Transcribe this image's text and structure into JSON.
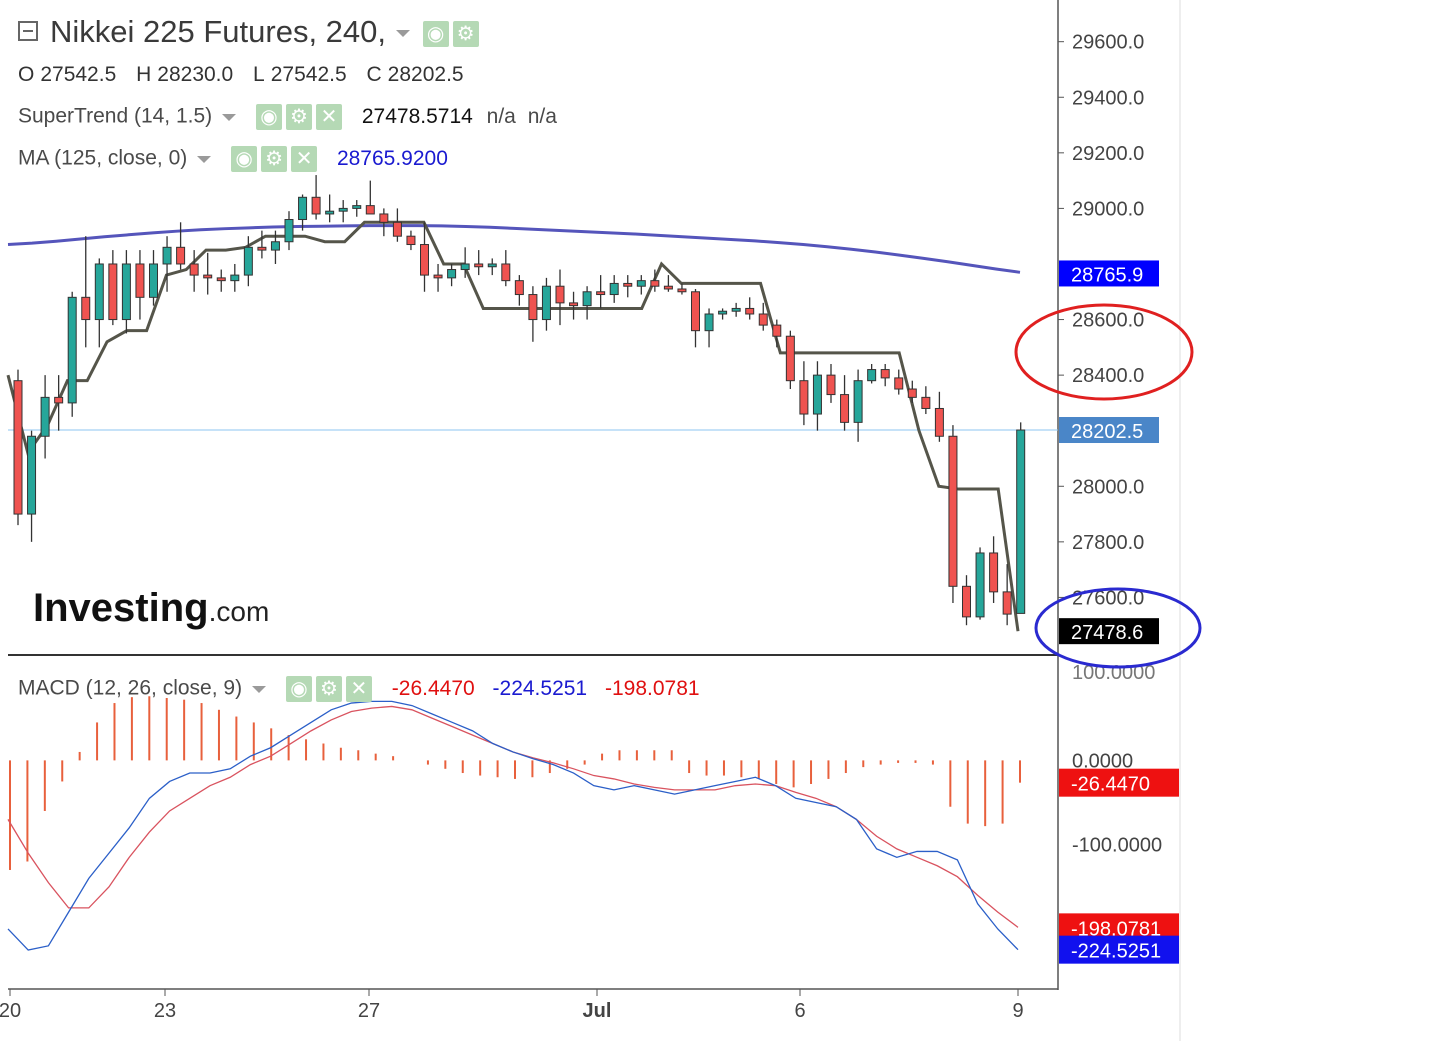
{
  "header": {
    "title": "Nikkei 225 Futures, 240,",
    "ohlc": [
      {
        "k": "O",
        "v": "27542.5"
      },
      {
        "k": "H",
        "v": "28230.0"
      },
      {
        "k": "L",
        "v": "27542.5"
      },
      {
        "k": "C",
        "v": "28202.5"
      }
    ],
    "supertrend": {
      "label": "SuperTrend (14, 1.5)",
      "value": "27478.5714",
      "na1": "n/a",
      "na2": "n/a"
    },
    "ma": {
      "label": "MA (125, close, 0)",
      "value": "28765.9200"
    },
    "macd": {
      "label": "MACD (12, 26, close, 9)",
      "hist": "-26.4470",
      "macd": "-224.5251",
      "signal": "-198.0781"
    }
  },
  "logo": {
    "main": "Investing",
    "suffix": ".com"
  },
  "colors": {
    "up": "#26a69a",
    "down": "#ef5350",
    "ma": "#5555bb",
    "supertrend": "#55554a",
    "macd": "#2b5fc8",
    "signal": "#d9535f",
    "hist": "#e8603c",
    "crosshair": "#8ec6f0"
  },
  "chart_data": {
    "type": "candlestick",
    "price_axis": {
      "ticks": [
        "29600.0",
        "29400.0",
        "29200.0",
        "29000.0",
        "28600.0",
        "28400.0",
        "28000.0",
        "27800.0",
        "27600.0"
      ],
      "range": [
        27400,
        29750
      ]
    },
    "x_labels": [
      "20",
      "23",
      "27",
      "Jul",
      "6",
      "9"
    ],
    "price_tags": [
      {
        "label": "28765.9",
        "value": 28765.9,
        "color": "#0000ff"
      },
      {
        "label": "28202.5",
        "value": 28202.5,
        "color": "#4a86c8"
      },
      {
        "label": "27478.6",
        "value": 27478.6,
        "color": "#000000"
      }
    ],
    "candles": [
      [
        28380,
        28420,
        27860,
        27900
      ],
      [
        27900,
        28200,
        27800,
        28180
      ],
      [
        28180,
        28400,
        28100,
        28320
      ],
      [
        28320,
        28400,
        28200,
        28300
      ],
      [
        28300,
        28700,
        28250,
        28680
      ],
      [
        28680,
        28900,
        28500,
        28600
      ],
      [
        28600,
        28820,
        28500,
        28800
      ],
      [
        28800,
        28850,
        28580,
        28600
      ],
      [
        28600,
        28850,
        28550,
        28800
      ],
      [
        28800,
        28850,
        28600,
        28680
      ],
      [
        28680,
        28850,
        28650,
        28800
      ],
      [
        28800,
        28900,
        28700,
        28860
      ],
      [
        28860,
        28950,
        28780,
        28800
      ],
      [
        28800,
        28850,
        28700,
        28760
      ],
      [
        28760,
        28840,
        28690,
        28750
      ],
      [
        28750,
        28780,
        28700,
        28740
      ],
      [
        28740,
        28800,
        28700,
        28760
      ],
      [
        28760,
        28900,
        28720,
        28860
      ],
      [
        28860,
        28920,
        28820,
        28850
      ],
      [
        28850,
        28920,
        28800,
        28880
      ],
      [
        28880,
        28990,
        28850,
        28960
      ],
      [
        28960,
        29050,
        28920,
        29040
      ],
      [
        29040,
        29120,
        28960,
        28980
      ],
      [
        28980,
        29050,
        28950,
        28990
      ],
      [
        28990,
        29030,
        28950,
        29000
      ],
      [
        29000,
        29030,
        28970,
        29010
      ],
      [
        29010,
        29100,
        28990,
        28980
      ],
      [
        28980,
        29000,
        28900,
        28950
      ],
      [
        28950,
        29000,
        28880,
        28900
      ],
      [
        28900,
        28920,
        28850,
        28870
      ],
      [
        28870,
        28950,
        28700,
        28760
      ],
      [
        28760,
        28800,
        28700,
        28750
      ],
      [
        28750,
        28800,
        28720,
        28780
      ],
      [
        28780,
        28860,
        28750,
        28800
      ],
      [
        28800,
        28850,
        28760,
        28790
      ],
      [
        28790,
        28820,
        28760,
        28800
      ],
      [
        28800,
        28850,
        28720,
        28740
      ],
      [
        28740,
        28760,
        28650,
        28690
      ],
      [
        28690,
        28720,
        28520,
        28600
      ],
      [
        28600,
        28750,
        28560,
        28720
      ],
      [
        28720,
        28780,
        28580,
        28660
      ],
      [
        28660,
        28700,
        28600,
        28650
      ],
      [
        28650,
        28720,
        28600,
        28700
      ],
      [
        28700,
        28760,
        28640,
        28690
      ],
      [
        28690,
        28760,
        28660,
        28730
      ],
      [
        28730,
        28760,
        28680,
        28720
      ],
      [
        28720,
        28760,
        28690,
        28740
      ],
      [
        28740,
        28780,
        28700,
        28720
      ],
      [
        28720,
        28760,
        28700,
        28710
      ],
      [
        28710,
        28730,
        28690,
        28700
      ],
      [
        28700,
        28710,
        28500,
        28560
      ],
      [
        28560,
        28640,
        28500,
        28620
      ],
      [
        28620,
        28640,
        28600,
        28630
      ],
      [
        28630,
        28660,
        28610,
        28640
      ],
      [
        28640,
        28680,
        28600,
        28620
      ],
      [
        28620,
        28660,
        28560,
        28580
      ],
      [
        28580,
        28600,
        28500,
        28540
      ],
      [
        28540,
        28560,
        28350,
        28380
      ],
      [
        28380,
        28450,
        28220,
        28260
      ],
      [
        28260,
        28450,
        28200,
        28400
      ],
      [
        28400,
        28440,
        28300,
        28330
      ],
      [
        28330,
        28400,
        28200,
        28230
      ],
      [
        28230,
        28420,
        28160,
        28380
      ],
      [
        28380,
        28440,
        28370,
        28420
      ],
      [
        28420,
        28440,
        28360,
        28390
      ],
      [
        28390,
        28420,
        28330,
        28350
      ],
      [
        28350,
        28380,
        28300,
        28320
      ],
      [
        28320,
        28360,
        28260,
        28280
      ],
      [
        28280,
        28340,
        28160,
        28180
      ],
      [
        28180,
        28220,
        27580,
        27640
      ],
      [
        27640,
        27680,
        27500,
        27530
      ],
      [
        27530,
        27780,
        27520,
        27760
      ],
      [
        27760,
        27820,
        27580,
        27620
      ],
      [
        27620,
        27720,
        27500,
        27540
      ],
      [
        27542.5,
        28230,
        27542.5,
        28202.5
      ]
    ],
    "ma_values": [
      28870,
      28875,
      28882,
      28890,
      28898,
      28905,
      28912,
      28918,
      28923,
      28927,
      28930,
      28933,
      28935,
      28936,
      28937,
      28938,
      28938,
      28938,
      28937,
      28935,
      28932,
      28928,
      28924,
      28920,
      28916,
      28912,
      28908,
      28903,
      28898,
      28893,
      28888,
      28883,
      28877,
      28870,
      28862,
      28853,
      28843,
      28832,
      28820,
      28808,
      28795,
      28782,
      28770
    ],
    "supertrend_values": [
      28400,
      28120,
      28220,
      28380,
      28380,
      28520,
      28560,
      28560,
      28760,
      28780,
      28850,
      28850,
      28860,
      28900,
      28900,
      28900,
      28880,
      28880,
      28950,
      28950,
      28950,
      28950,
      28800,
      28800,
      28640,
      28640,
      28640,
      28640,
      28640,
      28640,
      28640,
      28640,
      28640,
      28800,
      28730,
      28730,
      28730,
      28730,
      28730,
      28480,
      28480,
      28480,
      28480,
      28480,
      28480,
      28480,
      28200,
      28000,
      27990,
      27990,
      27990,
      27478.6
    ],
    "macd_axis": {
      "ticks": [
        "0.0000",
        "-100.0000"
      ],
      "top_label": "100.0000",
      "range": [
        -270,
        125
      ]
    },
    "macd_tags": [
      {
        "label": "-26.4470",
        "value": -26.447,
        "color": "#ee1111"
      },
      {
        "label": "-198.0781",
        "value": -198.0781,
        "color": "#ee1111"
      },
      {
        "label": "-224.5251",
        "value": -224.5251,
        "color": "#1111ee"
      }
    ],
    "macd_values": [
      -200,
      -225,
      -220,
      -180,
      -140,
      -110,
      -80,
      -45,
      -25,
      -15,
      -15,
      -10,
      5,
      15,
      30,
      45,
      60,
      68,
      70,
      70,
      65,
      55,
      45,
      35,
      20,
      10,
      2,
      -5,
      -15,
      -30,
      -35,
      -30,
      -35,
      -40,
      -35,
      -30,
      -25,
      -20,
      -30,
      -45,
      -50,
      -55,
      -70,
      -105,
      -115,
      -108,
      -108,
      -118,
      -170,
      -200,
      -224.5251
    ],
    "signal_values": [
      -70,
      -110,
      -145,
      -175,
      -175,
      -150,
      -115,
      -85,
      -60,
      -45,
      -30,
      -20,
      -5,
      5,
      20,
      35,
      48,
      58,
      62,
      64,
      60,
      50,
      40,
      30,
      20,
      10,
      3,
      -3,
      -10,
      -18,
      -22,
      -28,
      -32,
      -35,
      -35,
      -35,
      -30,
      -28,
      -30,
      -38,
      -45,
      -55,
      -70,
      -90,
      -105,
      -115,
      -125,
      -138,
      -160,
      -180,
      -198.0781
    ],
    "hist_values": [
      -130,
      -120,
      -60,
      -25,
      10,
      45,
      68,
      75,
      76,
      74,
      72,
      68,
      60,
      52,
      45,
      38,
      30,
      25,
      20,
      15,
      12,
      8,
      5,
      0,
      -5,
      -10,
      -15,
      -18,
      -20,
      -22,
      -20,
      -15,
      -10,
      -5,
      8,
      12,
      12,
      12,
      12,
      -15,
      -18,
      -18,
      -20,
      -22,
      -28,
      -32,
      -28,
      -22,
      -15,
      -8,
      -5,
      -3,
      -3,
      -5,
      -55,
      -75,
      -78,
      -75,
      -26.447
    ]
  }
}
